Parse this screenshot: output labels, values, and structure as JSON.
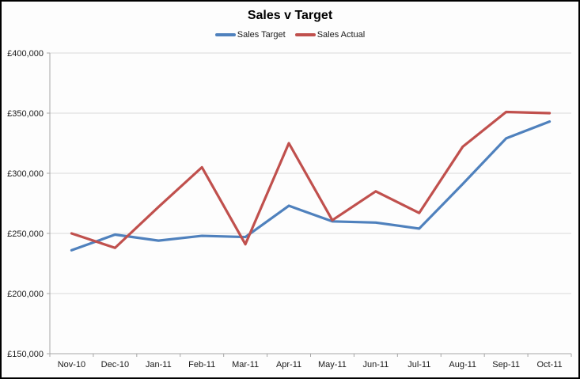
{
  "window": {
    "background": "#fdfdfd",
    "border_color": "#000000"
  },
  "chart_data": {
    "type": "line",
    "title": "Sales v Target",
    "categories": [
      "Nov-10",
      "Dec-10",
      "Jan-11",
      "Feb-11",
      "Mar-11",
      "Apr-11",
      "May-11",
      "Jun-11",
      "Jul-11",
      "Aug-11",
      "Sep-11",
      "Oct-11"
    ],
    "series": [
      {
        "name": "Sales Target",
        "color": "#4F81BD",
        "values": [
          236000,
          249000,
          244000,
          248000,
          247000,
          273000,
          260000,
          259000,
          254000,
          291000,
          329000,
          343000
        ]
      },
      {
        "name": "Sales Actual",
        "color": "#C0504D",
        "values": [
          250000,
          238000,
          272000,
          305000,
          241000,
          325000,
          261000,
          285000,
          267000,
          322000,
          351000,
          350000
        ]
      }
    ],
    "ylim": [
      150000,
      400000
    ],
    "y_ticks": [
      {
        "value": 150000,
        "label": "£150,000"
      },
      {
        "value": 200000,
        "label": "£200,000"
      },
      {
        "value": 250000,
        "label": "£250,000"
      },
      {
        "value": 300000,
        "label": "£300,000"
      },
      {
        "value": 350000,
        "label": "£350,000"
      },
      {
        "value": 400000,
        "label": "£400,000"
      }
    ],
    "grid": true,
    "legend_position": "top",
    "colors": {
      "gridline": "#d9d9d9",
      "axis_line": "#a6a6a6",
      "label_text": "#1a1a1a"
    }
  }
}
